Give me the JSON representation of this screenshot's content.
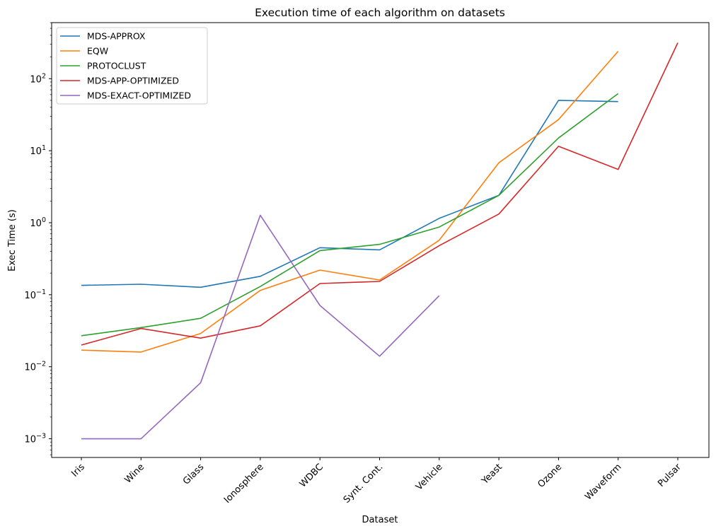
{
  "chart_data": {
    "type": "line",
    "title": "Execution time of each algorithm on datasets",
    "xlabel": "Dataset",
    "ylabel": "Exec Time (s)",
    "yscale": "log",
    "ylim": [
      0.00055,
      600
    ],
    "grid": false,
    "legend_position": "top-left",
    "categories": [
      "Iris",
      "Wine",
      "Glass",
      "Ionosphere",
      "WDBC",
      "Synt. Cont.",
      "Vehicle",
      "Yeast",
      "Ozone",
      "Waveform",
      "Pulsar"
    ],
    "y_ticks": [
      {
        "value": 0.001,
        "base": "10",
        "exp": "−3"
      },
      {
        "value": 0.01,
        "base": "10",
        "exp": "−2"
      },
      {
        "value": 0.1,
        "base": "10",
        "exp": "−1"
      },
      {
        "value": 1,
        "base": "10",
        "exp": "0"
      },
      {
        "value": 10,
        "base": "10",
        "exp": "1"
      },
      {
        "value": 100,
        "base": "10",
        "exp": "2"
      }
    ],
    "series": [
      {
        "name": "MDS-APPROX",
        "color": "#1f77b4",
        "values": [
          0.135,
          0.14,
          0.127,
          0.18,
          0.45,
          0.42,
          1.15,
          2.4,
          50,
          48,
          null
        ]
      },
      {
        "name": "EQW",
        "color": "#ff7f0e",
        "values": [
          0.017,
          0.016,
          0.029,
          0.115,
          0.22,
          0.16,
          0.57,
          6.8,
          27,
          240,
          null
        ]
      },
      {
        "name": "PROTOCLUST",
        "color": "#2ca02c",
        "values": [
          0.027,
          0.035,
          0.047,
          0.13,
          0.41,
          0.5,
          0.87,
          2.4,
          15,
          62,
          null
        ]
      },
      {
        "name": "MDS-APP-OPTIMIZED",
        "color": "#d62728",
        "values": [
          0.02,
          0.034,
          0.025,
          0.037,
          0.143,
          0.153,
          0.48,
          1.32,
          11.5,
          5.5,
          315
        ]
      },
      {
        "name": "MDS-EXACT-OPTIMIZED",
        "color": "#9467bd",
        "values": [
          0.001,
          0.001,
          0.006,
          1.27,
          0.071,
          0.014,
          0.097,
          null,
          null,
          null,
          null
        ]
      }
    ]
  }
}
